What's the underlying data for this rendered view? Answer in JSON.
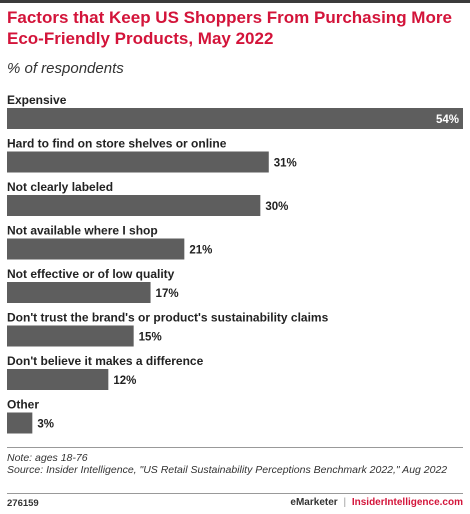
{
  "header": {
    "title": "Factors that Keep US Shoppers From Purchasing More Eco-Friendly Products, May 2022",
    "subtitle": "% of respondents"
  },
  "chart_data": {
    "type": "bar",
    "orientation": "horizontal",
    "categories": [
      "Expensive",
      "Hard to find on store shelves or online",
      "Not clearly labeled",
      "Not available where I shop",
      "Not effective or of low quality",
      "Don't trust the brand's or product's sustainability claims",
      "Don't believe it makes a difference",
      "Other"
    ],
    "values": [
      54,
      31,
      30,
      21,
      17,
      15,
      12,
      3
    ],
    "value_suffix": "%",
    "xlim": [
      0,
      54
    ],
    "grid": false,
    "bar_color": "#5e5e5e"
  },
  "footer": {
    "note": "Note: ages 18-76",
    "source": "Source: Insider Intelligence, \"US Retail Sustainability Perceptions Benchmark 2022,\" Aug 2022",
    "chart_id": "276159",
    "brand_left": "eMarketer",
    "brand_separator": "|",
    "brand_right": "InsiderIntelligence.com"
  },
  "colors": {
    "accent": "#d3143a",
    "bar": "#5e5e5e",
    "text": "#222222"
  }
}
